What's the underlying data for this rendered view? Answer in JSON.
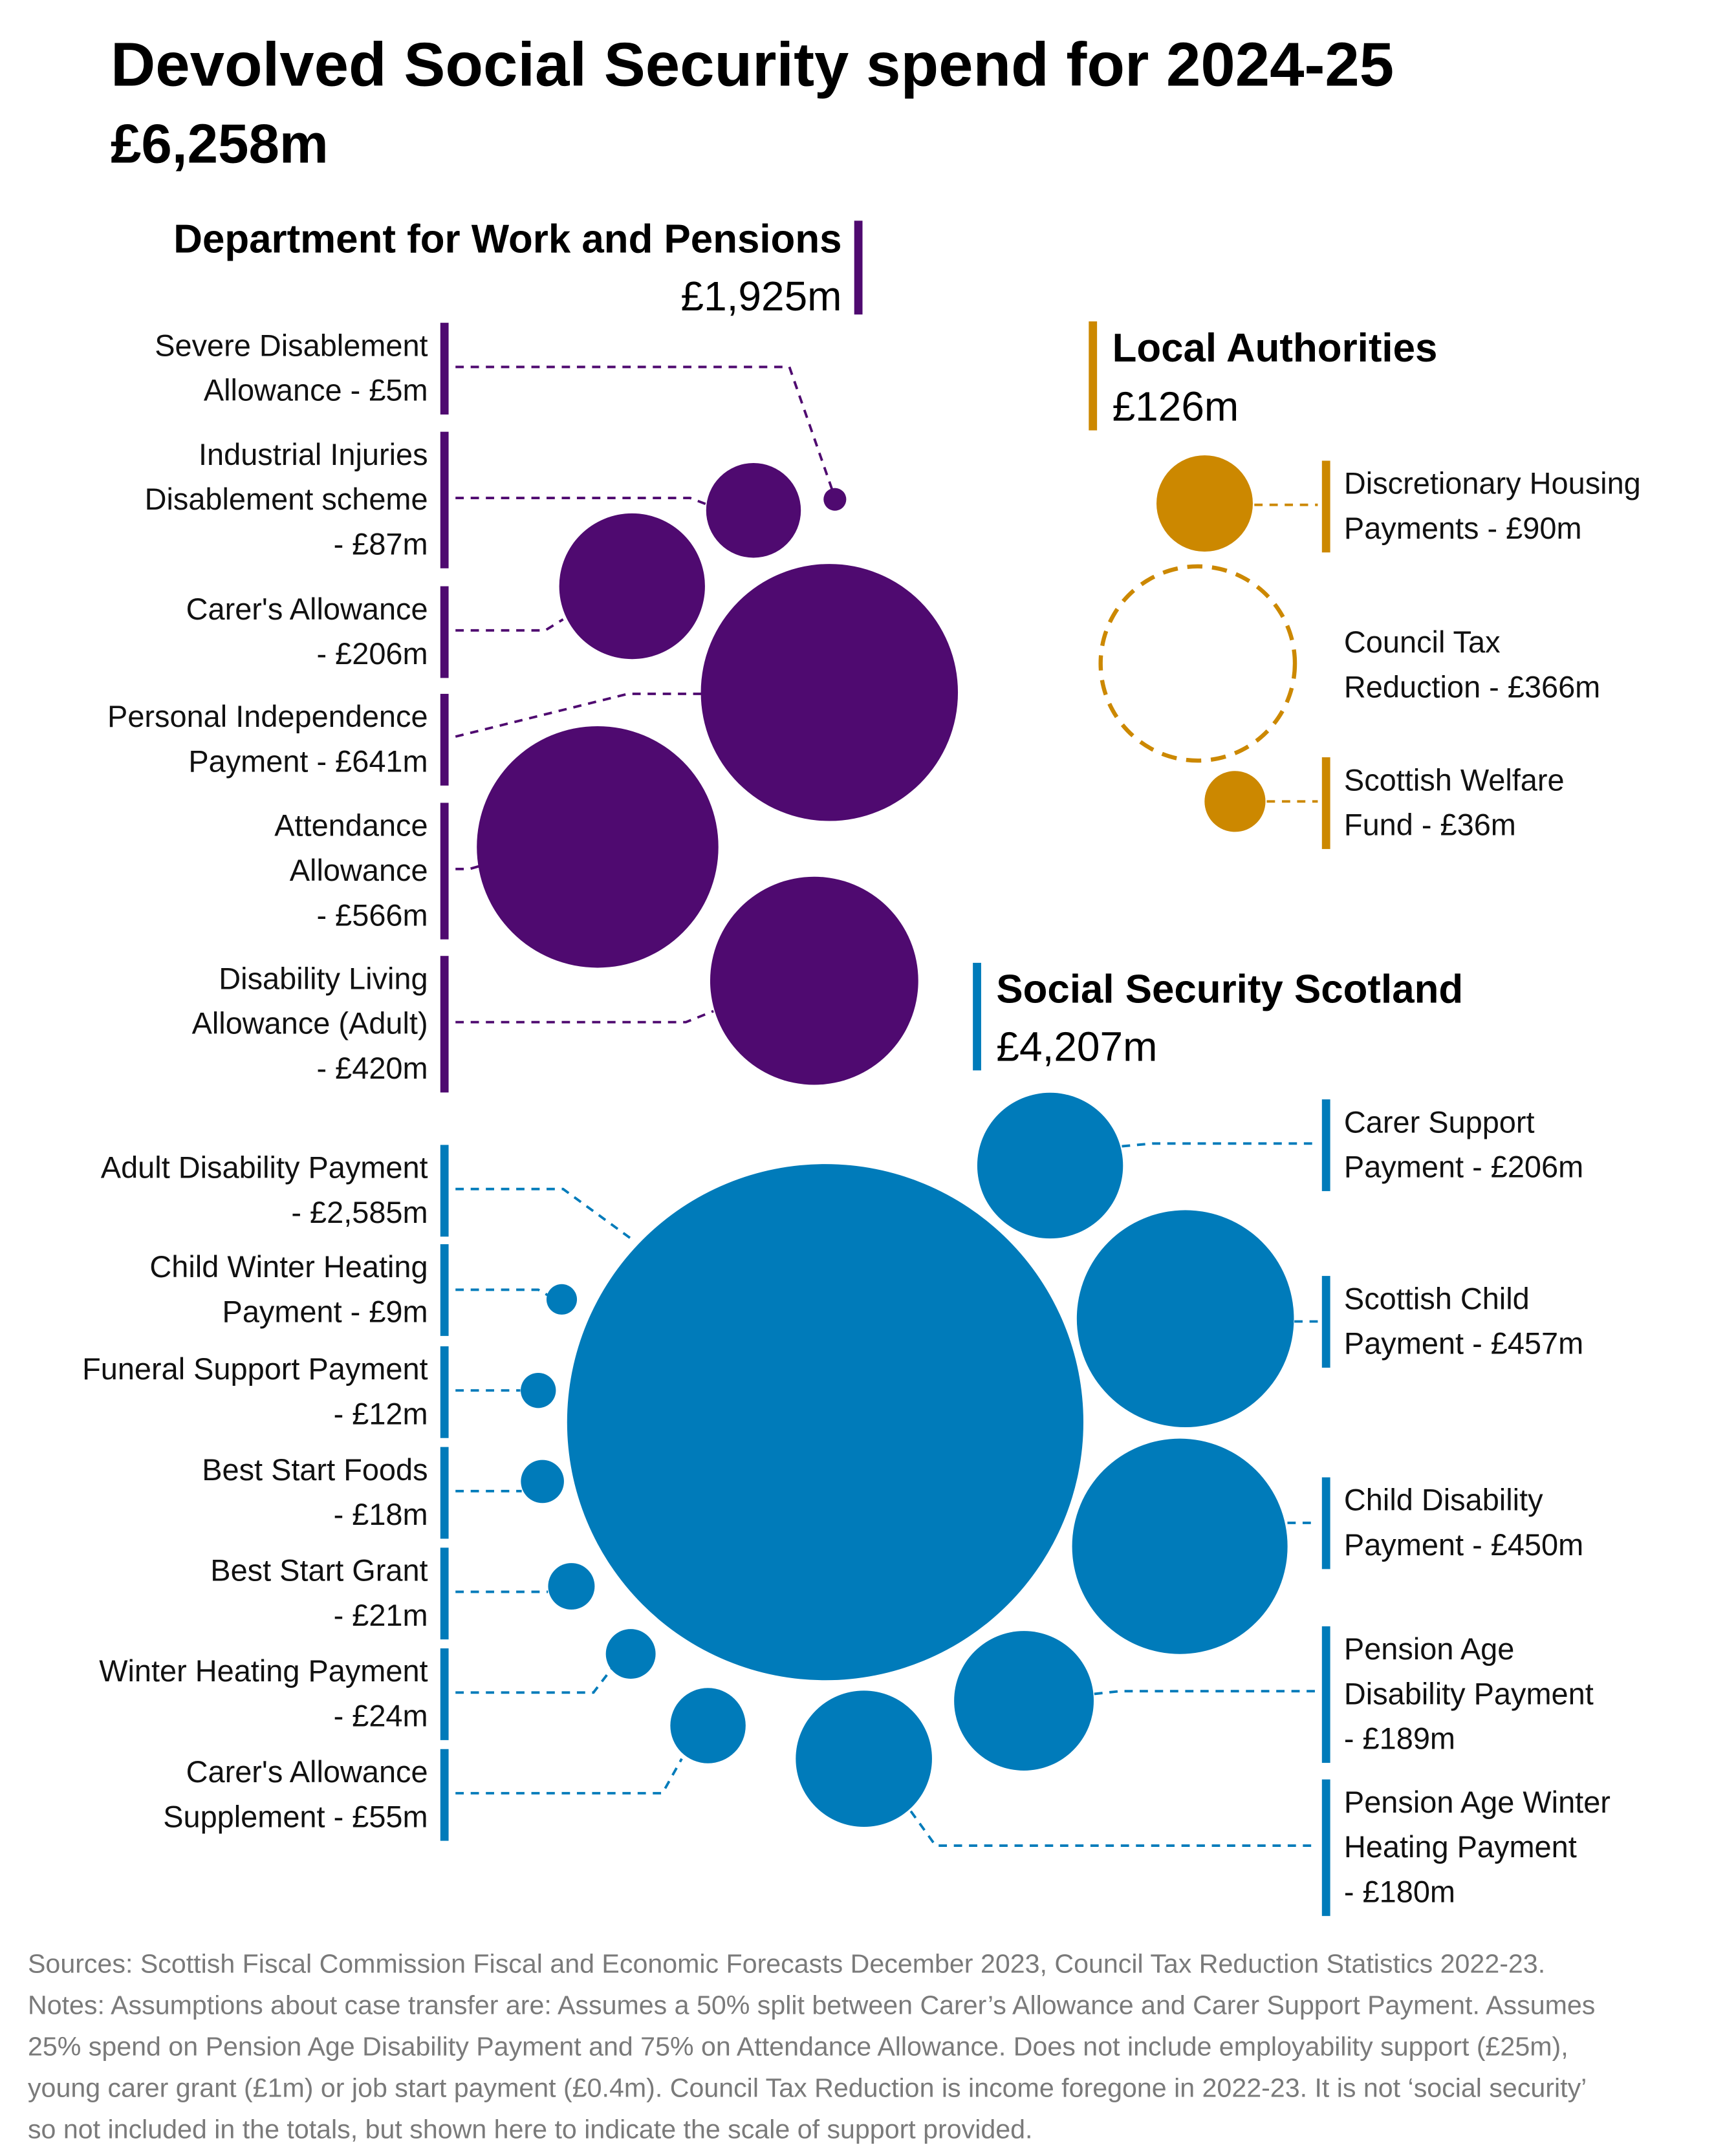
{
  "title": "Devolved Social Security spend for 2024-25",
  "subtitle": "£6,258m",
  "colors": {
    "dwp": "#4f0a70",
    "local": "#cc8800",
    "sss": "#007bba"
  },
  "chart_data": {
    "type": "bubble",
    "unit": "£m",
    "groups": [
      {
        "id": "dwp",
        "name": "Department for Work and Pensions",
        "total_label": "£1,925m",
        "total": 1925,
        "items": [
          {
            "id": "sda",
            "lines": [
              "Severe Disablement",
              "Allowance - £5m"
            ],
            "value": 5
          },
          {
            "id": "iidb",
            "lines": [
              "Industrial Injuries",
              "Disablement scheme",
              "- £87m"
            ],
            "value": 87
          },
          {
            "id": "ca",
            "lines": [
              "Carer's Allowance",
              "- £206m"
            ],
            "value": 206
          },
          {
            "id": "pip",
            "lines": [
              "Personal Independence",
              "Payment - £641m"
            ],
            "value": 641
          },
          {
            "id": "aa",
            "lines": [
              "Attendance",
              "Allowance",
              "- £566m"
            ],
            "value": 566
          },
          {
            "id": "dla",
            "lines": [
              "Disability Living",
              "Allowance (Adult)",
              "- £420m"
            ],
            "value": 420
          }
        ]
      },
      {
        "id": "local",
        "name": "Local Authorities",
        "total_label": "£126m",
        "total": 126,
        "items": [
          {
            "id": "dhp",
            "lines": [
              "Discretionary Housing",
              "Payments - £90m"
            ],
            "value": 90
          },
          {
            "id": "ctr",
            "lines": [
              "Council Tax",
              "Reduction - £366m"
            ],
            "value": 366,
            "outline_only": true
          },
          {
            "id": "swf",
            "lines": [
              "Scottish Welfare",
              "Fund - £36m"
            ],
            "value": 36
          }
        ]
      },
      {
        "id": "sss",
        "name": "Social Security Scotland",
        "total_label": "£4,207m",
        "total": 4207,
        "items": [
          {
            "id": "adp",
            "lines": [
              "Adult Disability Payment",
              "- £2,585m"
            ],
            "value": 2585
          },
          {
            "id": "cwhp",
            "lines": [
              "Child Winter Heating",
              "Payment - £9m"
            ],
            "value": 9
          },
          {
            "id": "fsp",
            "lines": [
              "Funeral Support Payment",
              "- £12m"
            ],
            "value": 12
          },
          {
            "id": "bsf",
            "lines": [
              "Best Start Foods",
              "- £18m"
            ],
            "value": 18
          },
          {
            "id": "bsg",
            "lines": [
              "Best Start Grant",
              "- £21m"
            ],
            "value": 21
          },
          {
            "id": "whp",
            "lines": [
              "Winter Heating Payment",
              "- £24m"
            ],
            "value": 24
          },
          {
            "id": "cas",
            "lines": [
              "Carer's Allowance",
              "Supplement - £55m"
            ],
            "value": 55
          },
          {
            "id": "csp",
            "lines": [
              "Carer Support",
              "Payment - £206m"
            ],
            "value": 206
          },
          {
            "id": "scp",
            "lines": [
              "Scottish Child",
              "Payment - £457m"
            ],
            "value": 457
          },
          {
            "id": "cdp",
            "lines": [
              "Child Disability",
              "Payment - £450m"
            ],
            "value": 450
          },
          {
            "id": "padp",
            "lines": [
              "Pension Age",
              "Disability Payment",
              "- £189m"
            ],
            "value": 189
          },
          {
            "id": "pawhp",
            "lines": [
              "Pension Age Winter",
              "Heating Payment",
              "- £180m"
            ],
            "value": 180
          }
        ]
      }
    ]
  },
  "footnote": [
    "Sources: Scottish Fiscal Commission Fiscal and Economic Forecasts December 2023, Council Tax Reduction Statistics 2022-23.",
    "Notes: Assumptions about case transfer are: Assumes a 50% split between Carer’s Allowance and Carer Support Payment. Assumes",
    "25% spend on Pension Age Disability Payment and 75% on Attendance Allowance. Does not include employability support (£25m),",
    "young carer grant (£1m) or job start payment (£0.4m). Council Tax Reduction is income foregone in 2022-23. It is not ‘social security’",
    "so not included in the totals, but shown here to indicate the scale of support provided."
  ]
}
